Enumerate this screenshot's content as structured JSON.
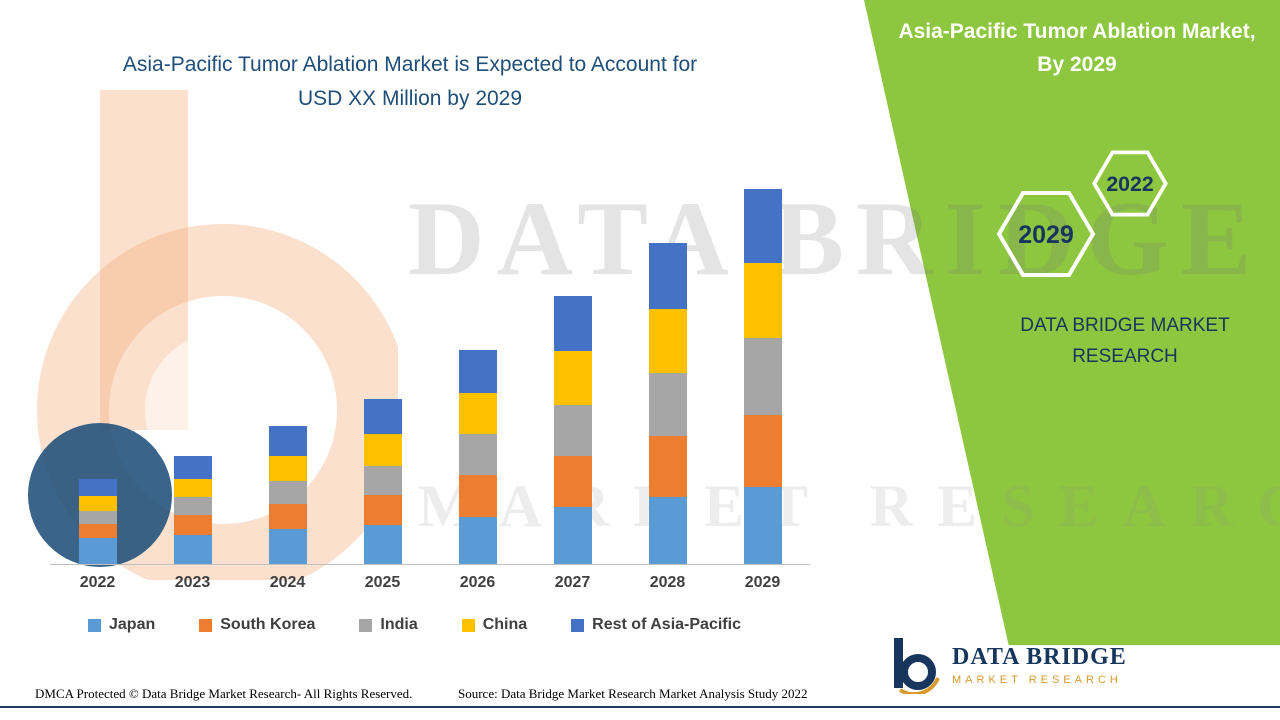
{
  "header": {
    "chart_title_line1": "Asia-Pacific Tumor Ablation Market is Expected to Account for",
    "chart_title_line2": "USD XX Million by 2029"
  },
  "side_panel": {
    "accent_color": "#8DC63F",
    "title_line1": "Asia-Pacific Tumor Ablation Market,",
    "title_line2": "By 2029",
    "hexagons": [
      {
        "label": "2029"
      },
      {
        "label": "2022"
      }
    ],
    "brand_line1": "DATA BRIDGE MARKET",
    "brand_line2": "RESEARCH"
  },
  "watermark": {
    "line1": "DATA BRIDGE",
    "line2": "MARKET RESEARCH"
  },
  "chart_data": {
    "type": "bar",
    "stacked": true,
    "title": "Asia-Pacific Tumor Ablation Market is Expected to Account for USD XX Million by 2029",
    "categories": [
      "2022",
      "2023",
      "2024",
      "2025",
      "2026",
      "2027",
      "2028",
      "2029"
    ],
    "series": [
      {
        "name": "Japan",
        "color": "#5B9BD5",
        "values": [
          26,
          30,
          36,
          40,
          48,
          58,
          68,
          78
        ]
      },
      {
        "name": "South Korea",
        "color": "#ED7D31",
        "values": [
          15,
          20,
          25,
          30,
          43,
          52,
          62,
          74
        ]
      },
      {
        "name": "India",
        "color": "#A6A6A6",
        "values": [
          13,
          18,
          24,
          30,
          41,
          52,
          64,
          78
        ]
      },
      {
        "name": "China",
        "color": "#FFC000",
        "values": [
          15,
          19,
          25,
          32,
          42,
          55,
          66,
          76
        ]
      },
      {
        "name": "Rest of Asia-Pacific",
        "color": "#4472C4",
        "values": [
          18,
          23,
          30,
          36,
          44,
          56,
          67,
          76
        ]
      }
    ],
    "xlabel": "",
    "ylabel": "",
    "ylim": [
      0,
      400
    ],
    "y_axis_labels_visible": false,
    "grid": false,
    "legend_position": "bottom"
  },
  "footer": {
    "dmca": "DMCA Protected © Data Bridge Market Research- All Rights Reserved.",
    "source": "Source: Data Bridge Market Research Market Analysis Study 2022",
    "logo_line1": "DATA BRIDGE",
    "logo_line2": "MARKET RESEARCH"
  }
}
